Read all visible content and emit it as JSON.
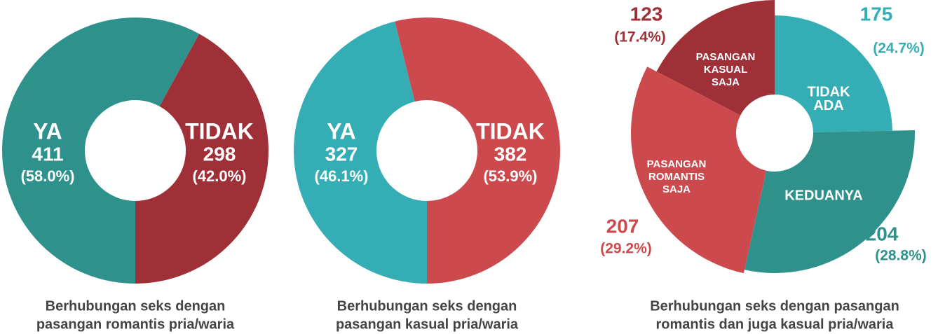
{
  "chart_data": [
    {
      "type": "donut",
      "title": [
        "Berhubungan seks dengan",
        "pasangan romantis pria/waria"
      ],
      "categories": [
        "YA",
        "TIDAK"
      ],
      "values": [
        411,
        298
      ],
      "percents": [
        58.0,
        42.0
      ],
      "percent_labels": [
        "(58.0%)",
        "(42.0%)"
      ],
      "colors": [
        "#2e918c",
        "#a03038"
      ]
    },
    {
      "type": "donut",
      "title": [
        "Berhubungan seks dengan",
        "pasangan kasual pria/waria"
      ],
      "categories": [
        "YA",
        "TIDAK"
      ],
      "values": [
        327,
        382
      ],
      "percents": [
        46.1,
        53.9
      ],
      "percent_labels": [
        "(46.1%)",
        "(53.9%)"
      ],
      "colors": [
        "#35adb5",
        "#cc4a4d"
      ]
    },
    {
      "type": "polar-donut",
      "title": [
        "Berhubungan seks dengan pasangan",
        "romantis dan juga kasual pria/waria"
      ],
      "categories": [
        [
          "TIDAK",
          "ADA"
        ],
        [
          "KEDUANYA"
        ],
        [
          "PASANGAN",
          "ROMANTIS",
          "SAJA"
        ],
        [
          "PASANGAN",
          "KASUAL",
          "SAJA"
        ]
      ],
      "values": [
        175,
        204,
        207,
        123
      ],
      "percents": [
        24.7,
        28.8,
        29.2,
        17.4
      ],
      "percent_labels": [
        "(24.7%)",
        "(28.8%)",
        "(29.2%)",
        "(17.4%)"
      ],
      "colors": [
        "#35adb5",
        "#2e918c",
        "#cc4a4d",
        "#a03038"
      ]
    }
  ]
}
